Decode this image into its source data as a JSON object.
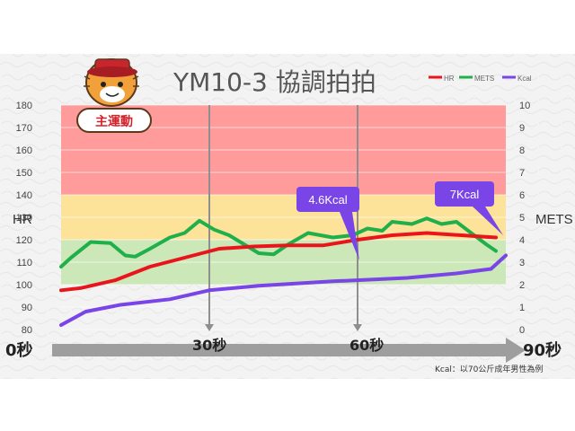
{
  "colors": {
    "zone_red": "#ff9b9b",
    "zone_yellow": "#fde39a",
    "zone_green": "#cde8b8",
    "hr_line": "#e8161c",
    "mets_line": "#20b04b",
    "kcal_line": "#7a45e6",
    "callout": "#7a45e6",
    "time_arrow": "#9e9e9e",
    "badge": "#d3222a"
  },
  "header": {
    "title": "YM10-3  協調拍拍",
    "badge": "主運動",
    "mascot_icon": "tiger-mascot-icon"
  },
  "timeline": {
    "start": "0秒",
    "mark1": "30秒",
    "mark2": "60秒",
    "end": "90秒"
  },
  "callouts": {
    "mid": "4.6Kcal",
    "end": "7Kcal"
  },
  "footnote": "Kcal：以70公斤成年男性為例",
  "chart_data": {
    "type": "line",
    "title": "YM10-3  協調拍拍",
    "ylabel_left": "HR",
    "ylabel_right": "METS",
    "ylim_left": [
      80,
      180
    ],
    "ylim_right": [
      0,
      10
    ],
    "yticks_left": [
      80,
      90,
      100,
      110,
      120,
      130,
      140,
      150,
      160,
      170,
      180
    ],
    "yticks_right": [
      0,
      1,
      2,
      3,
      4,
      5,
      6,
      7,
      8,
      9,
      10
    ],
    "zones": [
      {
        "from": 140,
        "to": 180,
        "color": "#ff9b9b"
      },
      {
        "from": 120,
        "to": 140,
        "color": "#fde39a"
      },
      {
        "from": 100,
        "to": 120,
        "color": "#cde8b8"
      }
    ],
    "legend": [
      "HR",
      "METS",
      "Kcal"
    ],
    "legend_position": "top-right",
    "xlim": [
      0,
      90
    ],
    "series": [
      {
        "name": "HR",
        "axis": "left",
        "x": [
          0,
          4,
          11,
          18,
          25,
          32,
          39,
          46,
          53,
          60,
          67,
          74,
          81,
          88
        ],
        "y": [
          97.5,
          98.5,
          102,
          108,
          112,
          116,
          117,
          117.5,
          117.5,
          120,
          122,
          123,
          122,
          121
        ]
      },
      {
        "name": "METS",
        "axis": "right",
        "x": [
          0,
          2,
          6,
          10,
          13,
          15,
          18,
          22,
          25,
          28,
          31,
          34,
          40,
          43,
          46,
          50,
          55,
          59,
          62,
          65,
          67,
          71,
          74,
          77,
          80,
          83,
          86,
          88
        ],
        "y": [
          2.8,
          3.2,
          3.9,
          3.85,
          3.3,
          3.25,
          3.6,
          4.1,
          4.3,
          4.85,
          4.45,
          4.2,
          3.4,
          3.35,
          3.8,
          4.3,
          4.1,
          4.2,
          4.5,
          4.4,
          4.8,
          4.7,
          4.95,
          4.7,
          4.8,
          4.3,
          3.8,
          3.5
        ]
      },
      {
        "name": "Kcal",
        "axis": "right",
        "x": [
          0,
          5,
          12,
          22,
          30,
          40,
          55,
          70,
          80,
          87,
          90
        ],
        "y": [
          0.2,
          0.8,
          1.1,
          1.35,
          1.75,
          1.95,
          2.15,
          2.3,
          2.5,
          2.7,
          3.3
        ]
      }
    ]
  }
}
